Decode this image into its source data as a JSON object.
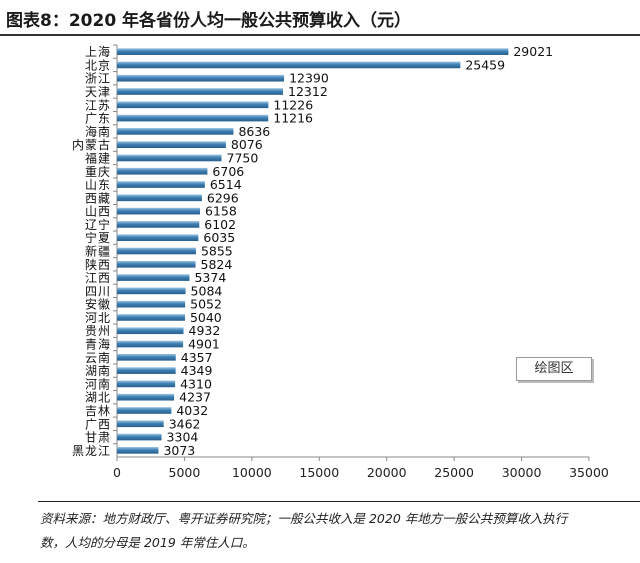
{
  "title": "图表8：2020 年各省份人均一般公共预算收入（元）",
  "plot_area_badge": "绘图区",
  "footnote": {
    "line1": "资料来源：地方财政厅、粤开证券研究院；一般公共收入是 2020 年地方一般公共预算收入执行",
    "line2": "数，人均的分母是 2019 年常住人口。"
  },
  "colors": {
    "bar": "#3d7fb3",
    "bar_light": "#9cc4e2",
    "axis": "#888888"
  },
  "chart_data": {
    "type": "bar",
    "orientation": "horizontal",
    "categories": [
      "上海",
      "北京",
      "浙江",
      "天津",
      "江苏",
      "广东",
      "海南",
      "内蒙古",
      "福建",
      "重庆",
      "山东",
      "西藏",
      "山西",
      "辽宁",
      "宁夏",
      "新疆",
      "陕西",
      "江西",
      "四川",
      "安徽",
      "河北",
      "贵州",
      "青海",
      "云南",
      "湖南",
      "河南",
      "湖北",
      "吉林",
      "广西",
      "甘肃",
      "黑龙江"
    ],
    "values": [
      29021,
      25459,
      12390,
      12312,
      11226,
      11216,
      8636,
      8076,
      7750,
      6706,
      6514,
      6296,
      6158,
      6102,
      6035,
      5855,
      5824,
      5374,
      5084,
      5052,
      5040,
      4932,
      4901,
      4357,
      4349,
      4310,
      4237,
      4032,
      3462,
      3304,
      3073
    ],
    "xlim": [
      0,
      35000
    ],
    "xticks": [
      0,
      5000,
      10000,
      15000,
      20000,
      25000,
      30000,
      35000
    ],
    "xticklabels": [
      "0",
      "5000",
      "10000",
      "15000",
      "20000",
      "25000",
      "30000",
      "35000"
    ],
    "data_labels": true,
    "grid": false,
    "legend": "none"
  }
}
